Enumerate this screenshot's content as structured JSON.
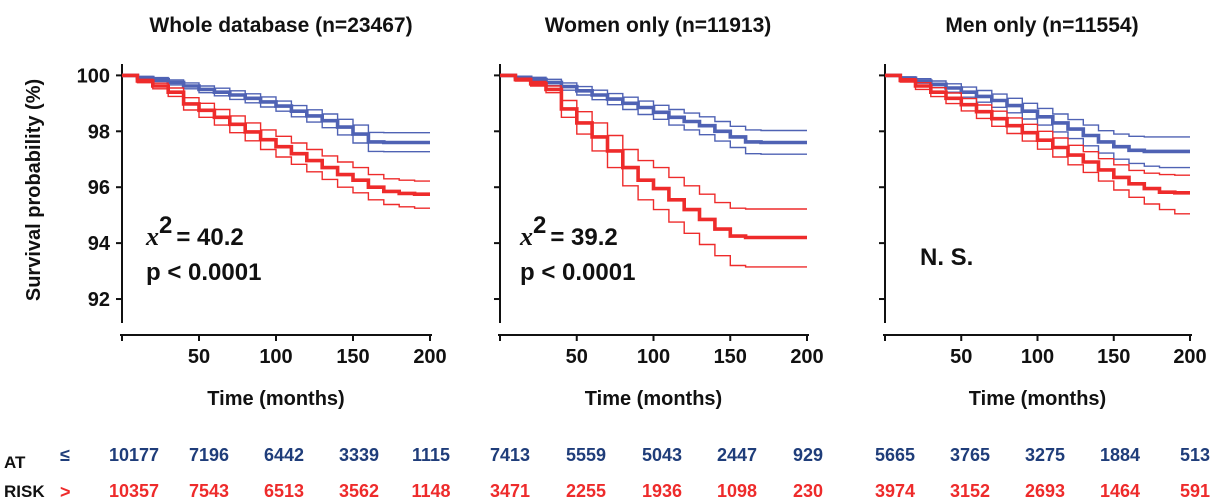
{
  "chart_data": [
    {
      "type": "line",
      "title": "Whole database (n=23467)",
      "xlabel": "Time (months)",
      "ylabel": "Survival probability (%)",
      "xlim": [
        0,
        200
      ],
      "ylim": [
        91.5,
        100.3
      ],
      "xticks": [
        "50",
        "100",
        "150",
        "200"
      ],
      "yticks": [
        "100",
        "98",
        "96",
        "94",
        "92"
      ],
      "stat_symbol": "x",
      "stat_value": "= 40.2",
      "p_value": "p < 0.0001",
      "series": [
        {
          "color": "#4f62b4",
          "x": [
            0,
            10,
            20,
            30,
            40,
            50,
            60,
            70,
            80,
            90,
            100,
            110,
            120,
            130,
            140,
            150,
            160,
            170,
            180,
            190,
            200
          ],
          "y": [
            100,
            99.92,
            99.85,
            99.75,
            99.62,
            99.5,
            99.4,
            99.3,
            99.18,
            99.05,
            98.9,
            98.72,
            98.55,
            98.38,
            98.15,
            97.9,
            97.62,
            97.6,
            97.6,
            97.6,
            97.6
          ],
          "upper": [
            100,
            99.96,
            99.92,
            99.84,
            99.73,
            99.62,
            99.54,
            99.45,
            99.34,
            99.23,
            99.08,
            98.92,
            98.77,
            98.62,
            98.43,
            98.22,
            97.96,
            97.95,
            97.95,
            97.95,
            97.95
          ],
          "lower": [
            100,
            99.88,
            99.78,
            99.66,
            99.52,
            99.38,
            99.27,
            99.14,
            99.02,
            98.87,
            98.72,
            98.52,
            98.33,
            98.13,
            97.87,
            97.58,
            97.28,
            97.27,
            97.27,
            97.27,
            97.27
          ]
        },
        {
          "color": "#ee2b2b",
          "x": [
            0,
            10,
            20,
            30,
            40,
            50,
            60,
            70,
            80,
            90,
            100,
            110,
            120,
            130,
            140,
            150,
            160,
            170,
            180,
            190,
            200
          ],
          "y": [
            100,
            99.8,
            99.62,
            99.4,
            98.98,
            98.75,
            98.5,
            98.25,
            97.98,
            97.7,
            97.45,
            97.2,
            96.95,
            96.7,
            96.45,
            96.25,
            96.0,
            95.85,
            95.78,
            95.75,
            95.75
          ],
          "upper": [
            100,
            99.86,
            99.72,
            99.55,
            99.2,
            99.0,
            98.78,
            98.55,
            98.3,
            98.05,
            97.82,
            97.58,
            97.35,
            97.12,
            96.9,
            96.7,
            96.45,
            96.3,
            96.25,
            96.22,
            96.22
          ],
          "lower": [
            100,
            99.74,
            99.52,
            99.25,
            98.76,
            98.5,
            98.22,
            97.95,
            97.66,
            97.35,
            97.08,
            96.82,
            96.55,
            96.28,
            96.0,
            95.8,
            95.55,
            95.38,
            95.3,
            95.25,
            95.25
          ]
        }
      ]
    },
    {
      "type": "line",
      "title": "Women only (n=11913)",
      "xlabel": "Time (months)",
      "ylabel": "",
      "xlim": [
        0,
        200
      ],
      "ylim": [
        91.5,
        100.3
      ],
      "xticks": [
        "50",
        "100",
        "150",
        "200"
      ],
      "yticks": [],
      "stat_symbol": "x",
      "stat_value": "= 39.2",
      "p_value": "p < 0.0001",
      "series": [
        {
          "color": "#4f62b4",
          "x": [
            0,
            10,
            20,
            30,
            40,
            50,
            60,
            70,
            80,
            90,
            100,
            110,
            120,
            130,
            140,
            150,
            160,
            170,
            180,
            190,
            200
          ],
          "y": [
            100,
            99.93,
            99.85,
            99.75,
            99.6,
            99.45,
            99.3,
            99.15,
            99.0,
            98.85,
            98.68,
            98.5,
            98.35,
            98.2,
            98.0,
            97.8,
            97.62,
            97.6,
            97.6,
            97.6,
            97.6
          ],
          "upper": [
            100,
            99.97,
            99.93,
            99.86,
            99.73,
            99.6,
            99.47,
            99.35,
            99.22,
            99.08,
            98.93,
            98.78,
            98.65,
            98.52,
            98.35,
            98.18,
            98.05,
            98.03,
            98.03,
            98.03,
            98.03
          ],
          "lower": [
            100,
            99.89,
            99.77,
            99.64,
            99.47,
            99.3,
            99.13,
            98.95,
            98.78,
            98.6,
            98.43,
            98.22,
            98.05,
            97.88,
            97.65,
            97.42,
            97.2,
            97.18,
            97.18,
            97.18,
            97.18
          ]
        },
        {
          "color": "#ee2b2b",
          "x": [
            0,
            10,
            20,
            30,
            40,
            50,
            60,
            70,
            80,
            90,
            100,
            110,
            120,
            130,
            140,
            150,
            160,
            170,
            180,
            190,
            200
          ],
          "y": [
            100,
            99.85,
            99.7,
            99.5,
            98.8,
            98.3,
            97.8,
            97.3,
            96.7,
            96.25,
            95.95,
            95.55,
            95.2,
            94.85,
            94.5,
            94.25,
            94.2,
            94.2,
            94.2,
            94.2,
            94.2
          ],
          "upper": [
            100,
            99.9,
            99.78,
            99.62,
            99.1,
            98.7,
            98.3,
            97.85,
            97.35,
            96.95,
            96.7,
            96.35,
            96.05,
            95.75,
            95.45,
            95.25,
            95.22,
            95.22,
            95.22,
            95.22,
            95.22
          ],
          "lower": [
            100,
            99.8,
            99.62,
            99.38,
            98.5,
            97.9,
            97.3,
            96.7,
            96.05,
            95.55,
            95.2,
            94.75,
            94.35,
            93.95,
            93.55,
            93.2,
            93.15,
            93.15,
            93.15,
            93.15,
            93.15
          ]
        }
      ]
    },
    {
      "type": "line",
      "title": "Men only  (n=11554)",
      "xlabel": "Time (months)",
      "ylabel": "",
      "xlim": [
        0,
        200
      ],
      "ylim": [
        91.5,
        100.3
      ],
      "xticks": [
        "50",
        "100",
        "150",
        "200"
      ],
      "yticks": [],
      "stat_symbol": "",
      "stat_value": "N. S.",
      "p_value": "",
      "series": [
        {
          "color": "#4f62b4",
          "x": [
            0,
            10,
            20,
            30,
            40,
            50,
            60,
            70,
            80,
            90,
            100,
            110,
            120,
            130,
            140,
            150,
            160,
            170,
            180,
            190,
            200
          ],
          "y": [
            100,
            99.9,
            99.8,
            99.68,
            99.55,
            99.4,
            99.25,
            99.1,
            98.92,
            98.72,
            98.52,
            98.3,
            98.08,
            97.85,
            97.62,
            97.45,
            97.32,
            97.28,
            97.28,
            97.28,
            97.28
          ],
          "upper": [
            100,
            99.95,
            99.88,
            99.8,
            99.7,
            99.58,
            99.46,
            99.33,
            99.18,
            99.0,
            98.82,
            98.62,
            98.42,
            98.22,
            98.02,
            97.9,
            97.82,
            97.8,
            97.8,
            97.8,
            97.8
          ],
          "lower": [
            100,
            99.85,
            99.72,
            99.57,
            99.4,
            99.22,
            99.04,
            98.86,
            98.66,
            98.44,
            98.22,
            97.98,
            97.74,
            97.48,
            97.22,
            97.0,
            96.85,
            96.75,
            96.7,
            96.7,
            96.7
          ]
        },
        {
          "color": "#ee2b2b",
          "x": [
            0,
            10,
            20,
            30,
            40,
            50,
            60,
            70,
            80,
            90,
            100,
            110,
            120,
            130,
            140,
            150,
            160,
            170,
            180,
            190,
            200
          ],
          "y": [
            100,
            99.82,
            99.62,
            99.4,
            99.18,
            98.95,
            98.7,
            98.45,
            98.2,
            97.95,
            97.68,
            97.42,
            97.15,
            96.9,
            96.62,
            96.35,
            96.12,
            95.95,
            95.82,
            95.8,
            95.8
          ],
          "upper": [
            100,
            99.88,
            99.74,
            99.56,
            99.37,
            99.17,
            98.94,
            98.72,
            98.48,
            98.25,
            98.0,
            97.76,
            97.5,
            97.27,
            97.02,
            96.8,
            96.6,
            96.5,
            96.45,
            96.43,
            96.43
          ],
          "lower": [
            100,
            99.76,
            99.5,
            99.24,
            98.99,
            98.73,
            98.46,
            98.18,
            97.92,
            97.65,
            97.36,
            97.08,
            96.8,
            96.53,
            96.22,
            95.9,
            95.64,
            95.4,
            95.2,
            95.05,
            95.05
          ]
        }
      ]
    }
  ],
  "risk_table": {
    "label_top": "AT",
    "label_bottom": "RISK",
    "symbol_le": "≤",
    "symbol_gt": ">",
    "row_le": [
      "10177",
      "7196",
      "6442",
      "3339",
      "1115",
      "7413",
      "5559",
      "5043",
      "2447",
      "929",
      "5665",
      "3765",
      "3275",
      "1884",
      "513"
    ],
    "row_gt": [
      "10357",
      "7543",
      "6513",
      "3562",
      "1148",
      "3471",
      "2255",
      "1936",
      "1098",
      "230",
      "3974",
      "3152",
      "2693",
      "1464",
      "591"
    ],
    "color_le": "#1f3d7a",
    "color_gt": "#ee2b2b"
  }
}
